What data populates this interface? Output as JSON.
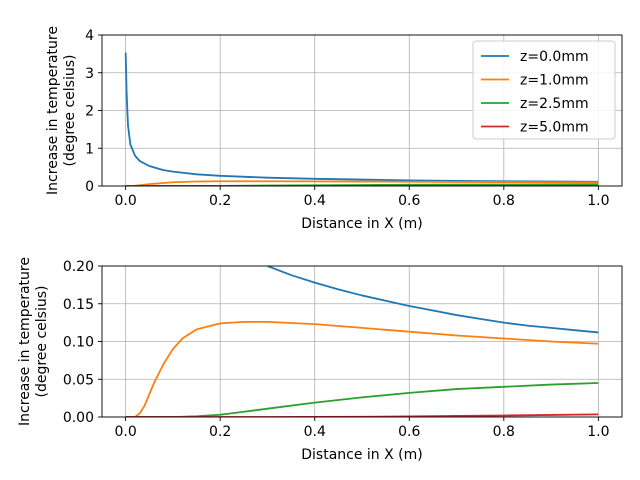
{
  "chart_data": [
    {
      "type": "line",
      "xlabel": "Distance in X (m)",
      "ylabel": [
        "Increase in temperature",
        "(degree celsius)"
      ],
      "xlim": [
        -0.05,
        1.05
      ],
      "ylim": [
        0,
        4
      ],
      "xticks": [
        0.0,
        0.2,
        0.4,
        0.6,
        0.8,
        1.0
      ],
      "xtick_labels": [
        "0.0",
        "0.2",
        "0.4",
        "0.6",
        "0.8",
        "1.0"
      ],
      "yticks": [
        0,
        1,
        2,
        3,
        4
      ],
      "ytick_labels": [
        "0",
        "1",
        "2",
        "3",
        "4"
      ],
      "grid": true,
      "legend": "top-right",
      "series": [
        {
          "name": "z=0.0mm",
          "color": "#1f77b4",
          "x": [
            0.0,
            0.002,
            0.005,
            0.01,
            0.02,
            0.03,
            0.05,
            0.08,
            0.1,
            0.15,
            0.2,
            0.3,
            0.4,
            0.5,
            0.6,
            0.7,
            0.8,
            0.9,
            1.0
          ],
          "y": [
            3.53,
            2.5,
            1.6,
            1.1,
            0.8,
            0.66,
            0.53,
            0.42,
            0.38,
            0.31,
            0.27,
            0.22,
            0.19,
            0.17,
            0.15,
            0.135,
            0.125,
            0.118,
            0.112
          ]
        },
        {
          "name": "z=1.0mm",
          "color": "#ff7f0e",
          "x": [
            0.0,
            0.02,
            0.05,
            0.1,
            0.15,
            0.2,
            0.3,
            0.4,
            0.5,
            0.6,
            0.7,
            0.8,
            0.9,
            1.0
          ],
          "y": [
            0.0,
            0.005,
            0.05,
            0.1,
            0.12,
            0.125,
            0.126,
            0.123,
            0.118,
            0.113,
            0.108,
            0.104,
            0.1,
            0.097
          ]
        },
        {
          "name": "z=2.5mm",
          "color": "#2ca02c",
          "x": [
            0.0,
            0.1,
            0.15,
            0.2,
            0.3,
            0.4,
            0.5,
            0.6,
            0.7,
            0.8,
            0.9,
            1.0
          ],
          "y": [
            0.0,
            0.0,
            0.001,
            0.004,
            0.011,
            0.019,
            0.026,
            0.032,
            0.037,
            0.04,
            0.043,
            0.045
          ]
        },
        {
          "name": "z=5.0mm",
          "color": "#d62728",
          "x": [
            0.0,
            0.4,
            0.5,
            0.6,
            0.7,
            0.8,
            0.9,
            1.0
          ],
          "y": [
            0.0,
            0.0,
            0.0003,
            0.0008,
            0.0014,
            0.002,
            0.0027,
            0.0035
          ]
        }
      ]
    },
    {
      "type": "line",
      "xlabel": "Distance in X (m)",
      "ylabel": [
        "Increase in temperature",
        "(degree celsius)"
      ],
      "xlim": [
        -0.05,
        1.05
      ],
      "ylim": [
        0,
        0.2
      ],
      "xticks": [
        0.0,
        0.2,
        0.4,
        0.6,
        0.8,
        1.0
      ],
      "xtick_labels": [
        "0.0",
        "0.2",
        "0.4",
        "0.6",
        "0.8",
        "1.0"
      ],
      "yticks": [
        0,
        0.05,
        0.1,
        0.15,
        0.2
      ],
      "ytick_labels": [
        "0.00",
        "0.05",
        "0.10",
        "0.15",
        "0.20"
      ],
      "grid": true,
      "legend": "none",
      "series": [
        {
          "name": "z=0.0mm",
          "color": "#1f77b4",
          "x": [
            0.3,
            0.35,
            0.4,
            0.45,
            0.5,
            0.55,
            0.6,
            0.65,
            0.7,
            0.75,
            0.8,
            0.85,
            0.9,
            0.95,
            1.0
          ],
          "y": [
            0.2,
            0.188,
            0.178,
            0.169,
            0.161,
            0.154,
            0.147,
            0.141,
            0.135,
            0.13,
            0.125,
            0.121,
            0.118,
            0.115,
            0.112
          ]
        },
        {
          "name": "z=1.0mm",
          "color": "#ff7f0e",
          "x": [
            0.0,
            0.02,
            0.03,
            0.04,
            0.05,
            0.06,
            0.08,
            0.1,
            0.12,
            0.15,
            0.2,
            0.25,
            0.3,
            0.4,
            0.5,
            0.6,
            0.7,
            0.8,
            0.9,
            1.0
          ],
          "y": [
            0.0,
            0.0,
            0.005,
            0.015,
            0.03,
            0.045,
            0.07,
            0.09,
            0.104,
            0.116,
            0.124,
            0.126,
            0.126,
            0.123,
            0.118,
            0.113,
            0.108,
            0.104,
            0.1,
            0.097
          ]
        },
        {
          "name": "z=2.5mm",
          "color": "#2ca02c",
          "x": [
            0.0,
            0.1,
            0.15,
            0.2,
            0.25,
            0.3,
            0.4,
            0.5,
            0.6,
            0.7,
            0.8,
            0.9,
            1.0
          ],
          "y": [
            0.0,
            0.0,
            0.001,
            0.003,
            0.007,
            0.011,
            0.019,
            0.026,
            0.032,
            0.037,
            0.04,
            0.043,
            0.045
          ]
        },
        {
          "name": "z=5.0mm",
          "color": "#d62728",
          "x": [
            0.0,
            0.3,
            0.4,
            0.5,
            0.6,
            0.7,
            0.8,
            0.9,
            1.0
          ],
          "y": [
            0.0,
            0.0,
            0.0001,
            0.0003,
            0.0008,
            0.0014,
            0.002,
            0.0027,
            0.0035
          ]
        }
      ]
    }
  ]
}
